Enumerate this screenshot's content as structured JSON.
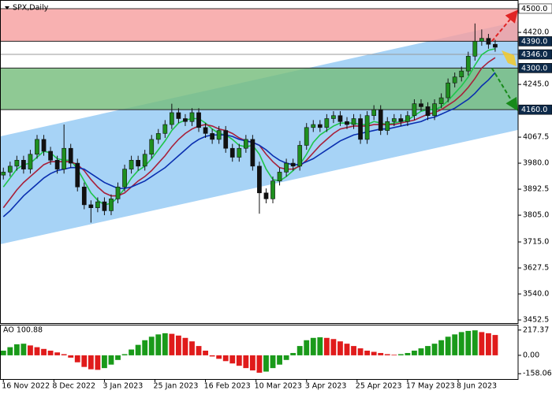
{
  "chart_data": [
    {
      "type": "candlestick",
      "title": "SPX,Daily",
      "xlim": [
        -0.5,
        76.4
      ],
      "xticks": [
        {
          "value": 0,
          "label": "16 Nov 2022"
        },
        {
          "value": 7.5,
          "label": "8 Dec 2022"
        },
        {
          "value": 15,
          "label": "3 Jan 2023"
        },
        {
          "value": 22.5,
          "label": "25 Jan 2023"
        },
        {
          "value": 30,
          "label": "16 Feb 2023"
        },
        {
          "value": 37.5,
          "label": "10 Mar 2023"
        },
        {
          "value": 45,
          "label": "3 Apr 2023"
        },
        {
          "value": 52.5,
          "label": "25 Apr 2023"
        },
        {
          "value": 60,
          "label": "17 May 2023"
        },
        {
          "value": 67.5,
          "label": "8 Jun 2023"
        }
      ],
      "ylim": [
        3442,
        4529
      ],
      "yticks": [
        {
          "value": 3452.5,
          "label": "3452.5"
        },
        {
          "value": 3540,
          "label": "3540.0"
        },
        {
          "value": 3627.5,
          "label": "3627.5"
        },
        {
          "value": 3715,
          "label": "3715.0"
        },
        {
          "value": 3805,
          "label": "3805.0"
        },
        {
          "value": 3892.5,
          "label": "3892.5"
        },
        {
          "value": 3980,
          "label": "3980.0"
        },
        {
          "value": 4067.5,
          "label": "4067.5"
        },
        {
          "value": 4245,
          "label": "4245.0"
        },
        {
          "value": 4420,
          "label": "4420.0"
        }
      ],
      "open": [
        3940,
        3950,
        3970,
        3990,
        3960,
        4010,
        4060,
        4020,
        3990,
        3960,
        4030,
        3980,
        3900,
        3840,
        3830,
        3850,
        3820,
        3860,
        3900,
        3960,
        3990,
        3970,
        4010,
        4060,
        4080,
        4110,
        4150,
        4130,
        4120,
        4150,
        4100,
        4080,
        4060,
        4090,
        4030,
        4000,
        4030,
        4060,
        3970,
        3880,
        3860,
        3920,
        3950,
        3980,
        3970,
        4040,
        4100,
        4110,
        4100,
        4130,
        4140,
        4120,
        4110,
        4130,
        4060,
        4140,
        4160,
        4090,
        4120,
        4130,
        4120,
        4140,
        4180,
        4170,
        4140,
        4180,
        4200,
        4250,
        4270,
        4290,
        4340,
        4390,
        4400,
        4380
      ],
      "high": [
        3965,
        3985,
        4005,
        4005,
        4025,
        4075,
        4075,
        4035,
        4005,
        4110,
        4045,
        3995,
        3915,
        3855,
        3865,
        3865,
        3875,
        3915,
        3975,
        4005,
        4005,
        4025,
        4075,
        4095,
        4125,
        4180,
        4165,
        4145,
        4165,
        4165,
        4115,
        4095,
        4105,
        4105,
        4045,
        4045,
        4075,
        4075,
        3985,
        3895,
        3935,
        3965,
        3995,
        3995,
        4055,
        4115,
        4125,
        4125,
        4145,
        4155,
        4155,
        4135,
        4145,
        4145,
        4155,
        4175,
        4175,
        4135,
        4145,
        4145,
        4155,
        4195,
        4195,
        4185,
        4195,
        4215,
        4265,
        4285,
        4305,
        4355,
        4450,
        4430,
        4415,
        4395
      ],
      "low": [
        3925,
        3935,
        3955,
        3945,
        3945,
        3995,
        4005,
        3975,
        3945,
        3945,
        3965,
        3885,
        3825,
        3780,
        3815,
        3805,
        3805,
        3845,
        3885,
        3945,
        3955,
        3955,
        3995,
        4045,
        4065,
        4095,
        4115,
        4105,
        4105,
        4085,
        4065,
        4045,
        4045,
        4015,
        3985,
        3985,
        4015,
        3955,
        3810,
        3845,
        3845,
        3905,
        3935,
        3955,
        3955,
        4025,
        4085,
        4085,
        4085,
        4115,
        4105,
        4095,
        4095,
        4045,
        4045,
        4125,
        4075,
        4075,
        4105,
        4105,
        4105,
        4125,
        4155,
        4125,
        4125,
        4165,
        4185,
        4235,
        4255,
        4275,
        4325,
        4375,
        4365,
        4355
      ],
      "close": [
        3950,
        3970,
        3990,
        3960,
        4010,
        4060,
        4020,
        3990,
        3960,
        4030,
        3980,
        3900,
        3840,
        3830,
        3850,
        3820,
        3860,
        3900,
        3960,
        3990,
        3970,
        4010,
        4060,
        4080,
        4110,
        4150,
        4130,
        4120,
        4150,
        4100,
        4080,
        4060,
        4090,
        4030,
        4000,
        4030,
        4060,
        3970,
        3880,
        3860,
        3920,
        3950,
        3980,
        3970,
        4040,
        4100,
        4110,
        4100,
        4130,
        4140,
        4120,
        4110,
        4130,
        4060,
        4140,
        4160,
        4090,
        4120,
        4130,
        4120,
        4140,
        4180,
        4170,
        4140,
        4180,
        4200,
        4250,
        4270,
        4290,
        4340,
        4390,
        4400,
        4380,
        4370
      ],
      "up_color": "#1f8f1f",
      "down_color": "#111111",
      "series": [
        {
          "color": "#1fc44a",
          "values": [
            3900,
            3930,
            3960,
            3975,
            3980,
            4000,
            4020,
            4015,
            3995,
            3990,
            3990,
            3960,
            3920,
            3880,
            3855,
            3840,
            3845,
            3865,
            3895,
            3930,
            3955,
            3970,
            3995,
            4025,
            4055,
            4090,
            4115,
            4125,
            4130,
            4130,
            4115,
            4095,
            4080,
            4075,
            4060,
            4040,
            4035,
            4040,
            4010,
            3960,
            3925,
            3920,
            3935,
            3955,
            3975,
            4010,
            4050,
            4075,
            4090,
            4105,
            4115,
            4115,
            4115,
            4110,
            4110,
            4120,
            4115,
            4110,
            4115,
            4120,
            4125,
            4140,
            4155,
            4160,
            4160,
            4170,
            4190,
            4215,
            4240,
            4270,
            4310,
            4345,
            4360,
            4365
          ]
        },
        {
          "color": "#a8203a",
          "values": [
            3830,
            3860,
            3890,
            3915,
            3935,
            3955,
            3975,
            3985,
            3985,
            3985,
            3985,
            3975,
            3955,
            3925,
            3900,
            3880,
            3870,
            3870,
            3880,
            3900,
            3920,
            3935,
            3955,
            3980,
            4005,
            4035,
            4060,
            4080,
            4095,
            4105,
            4110,
            4105,
            4095,
            4090,
            4080,
            4065,
            4055,
            4050,
            4040,
            4010,
            3985,
            3965,
            3960,
            3960,
            3970,
            3990,
            4015,
            4040,
            4060,
            4080,
            4095,
            4100,
            4105,
            4105,
            4105,
            4110,
            4110,
            4110,
            4110,
            4115,
            4120,
            4125,
            4135,
            4145,
            4150,
            4160,
            4175,
            4190,
            4210,
            4235,
            4265,
            4300,
            4320,
            4335
          ]
        },
        {
          "color": "#0a2fb0",
          "values": [
            3800,
            3820,
            3845,
            3870,
            3890,
            3910,
            3930,
            3945,
            3955,
            3960,
            3965,
            3965,
            3960,
            3945,
            3930,
            3915,
            3905,
            3895,
            3895,
            3900,
            3910,
            3920,
            3935,
            3950,
            3965,
            3985,
            4005,
            4025,
            4045,
            4060,
            4070,
            4075,
            4075,
            4075,
            4070,
            4060,
            4055,
            4050,
            4040,
            4025,
            4005,
            3990,
            3980,
            3975,
            3975,
            3985,
            3995,
            4010,
            4025,
            4040,
            4055,
            4065,
            4075,
            4080,
            4085,
            4090,
            4095,
            4095,
            4100,
            4105,
            4110,
            4115,
            4120,
            4130,
            4135,
            4145,
            4155,
            4165,
            4180,
            4195,
            4215,
            4240,
            4260,
            4285
          ]
        }
      ],
      "channel": {
        "x": [
          -0.5,
          76.4
        ],
        "upper": [
          4070,
          4457
        ],
        "lower": [
          3707,
          4092
        ],
        "color": "#a7d3f6"
      },
      "zones": [
        {
          "from": 4390,
          "to": 4500,
          "color": "#f7a0a0"
        },
        {
          "from": 4160,
          "to": 4300,
          "color": "#76bd7c"
        }
      ],
      "levels": [
        {
          "value": 4500,
          "label": "4500.0",
          "line_color": "#333333",
          "bg": "#ffffff",
          "fg": "#000000"
        },
        {
          "value": 4390,
          "label": "4390.0",
          "line_color": "#222222",
          "bg": "#0d2a4a",
          "fg": "#ffffff"
        },
        {
          "value": 4346,
          "label": "4346.0",
          "line_color": "#9a9a9a",
          "bg": "#0d2a4a",
          "fg": "#ffffff"
        },
        {
          "value": 4300,
          "label": "4300.0",
          "line_color": "#222222",
          "bg": "#0d2a4a",
          "fg": "#ffffff"
        },
        {
          "value": 4160,
          "label": "4160.0",
          "line_color": "#222222",
          "bg": "#0d2a4a",
          "fg": "#ffffff"
        }
      ],
      "arrows": [
        {
          "x": [
            72.5,
            76.1
          ],
          "y": [
            4390,
            4488
          ],
          "color": "#e02424"
        },
        {
          "x": [
            72.5,
            76.1
          ],
          "y": [
            4300,
            4165
          ],
          "color": "#178a1a"
        }
      ]
    },
    {
      "type": "bar",
      "title": "AO 100.88",
      "ylim": [
        -204,
        257
      ],
      "yticks": [
        217.37,
        {
          "value": 0,
          "label": "0.00"
        },
        -158.06
      ],
      "up_color": "#1a9a1a",
      "down_color": "#e01b1b",
      "values": [
        40,
        70,
        95,
        100,
        85,
        70,
        55,
        40,
        25,
        10,
        -20,
        -60,
        -100,
        -120,
        -125,
        -110,
        -80,
        -40,
        10,
        50,
        90,
        130,
        160,
        180,
        190,
        185,
        170,
        150,
        120,
        80,
        40,
        -10,
        -30,
        -50,
        -70,
        -90,
        -110,
        -130,
        -150,
        -140,
        -110,
        -80,
        -40,
        20,
        80,
        130,
        150,
        155,
        150,
        140,
        120,
        100,
        80,
        60,
        40,
        30,
        20,
        10,
        5,
        10,
        20,
        40,
        60,
        80,
        100,
        130,
        160,
        180,
        200,
        210,
        215,
        200,
        190,
        175
      ]
    }
  ]
}
